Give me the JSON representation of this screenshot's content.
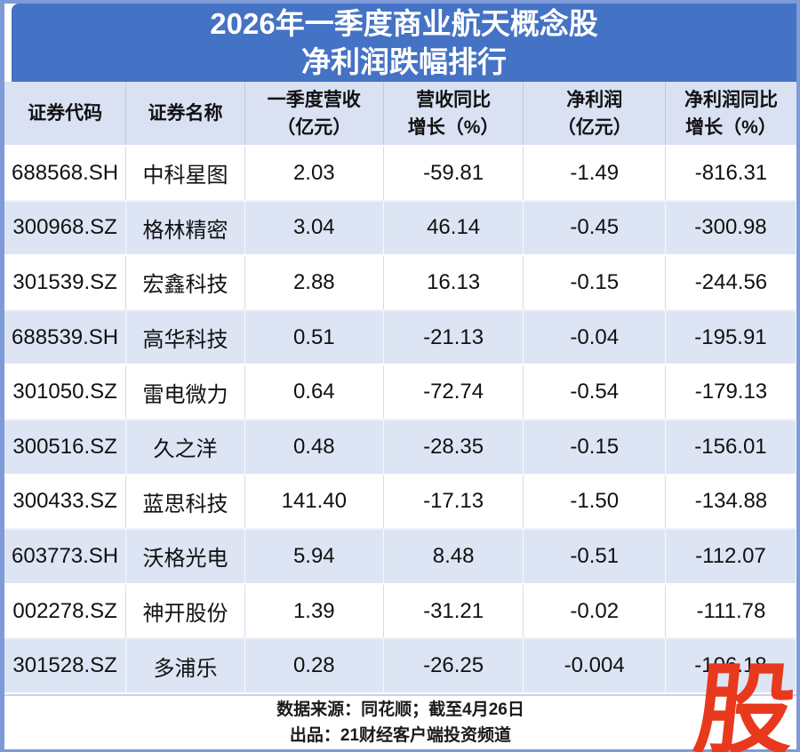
{
  "title": {
    "line1": "2026年一季度商业航天概念股",
    "line2": "净利润跌幅排行"
  },
  "chart_data": {
    "type": "table",
    "title": "2026年一季度商业航天概念股净利润跌幅排行",
    "columns": [
      {
        "label": "证券代码",
        "unit": ""
      },
      {
        "label": "证券名称",
        "unit": ""
      },
      {
        "label": "一季度营收",
        "unit": "（亿元）"
      },
      {
        "label": "营收同比",
        "unit": "增长（%）"
      },
      {
        "label": "净利润",
        "unit": "（亿元）"
      },
      {
        "label": "净利润同比",
        "unit": "增长（%）"
      }
    ],
    "rows": [
      [
        "688568.SH",
        "中科星图",
        "2.03",
        "-59.81",
        "-1.49",
        "-816.31"
      ],
      [
        "300968.SZ",
        "格林精密",
        "3.04",
        "46.14",
        "-0.45",
        "-300.98"
      ],
      [
        "301539.SZ",
        "宏鑫科技",
        "2.88",
        "16.13",
        "-0.15",
        "-244.56"
      ],
      [
        "688539.SH",
        "高华科技",
        "0.51",
        "-21.13",
        "-0.04",
        "-195.91"
      ],
      [
        "301050.SZ",
        "雷电微力",
        "0.64",
        "-72.74",
        "-0.54",
        "-179.13"
      ],
      [
        "300516.SZ",
        "久之洋",
        "0.48",
        "-28.35",
        "-0.15",
        "-156.01"
      ],
      [
        "300433.SZ",
        "蓝思科技",
        "141.40",
        "-17.13",
        "-1.50",
        "-134.88"
      ],
      [
        "603773.SH",
        "沃格光电",
        "5.94",
        "8.48",
        "-0.51",
        "-112.07"
      ],
      [
        "002278.SZ",
        "神开股份",
        "1.39",
        "-31.21",
        "-0.02",
        "-111.78"
      ],
      [
        "301528.SZ",
        "多浦乐",
        "0.28",
        "-26.25",
        "-0.004",
        "-106.18"
      ]
    ],
    "layout_hints": {
      "striped_rows": true,
      "header_background": "#d9e1f3",
      "stripe_background": "#dde5f4",
      "title_background": "#4472c4"
    }
  },
  "footer": {
    "line1": "数据来源：同花顺；截至4月26日",
    "line2": "出品：21财经客户端投资频道"
  },
  "watermark": {
    "char": "股",
    "color": "#e8391d"
  },
  "colors": {
    "title_blue": "#4472c4",
    "frame_blue": "#7e9ad8",
    "header_lavender": "#d9e1f3",
    "stripe_lavender": "#dde5f4",
    "logo_red": "#e8391d",
    "text_black": "#111111"
  }
}
